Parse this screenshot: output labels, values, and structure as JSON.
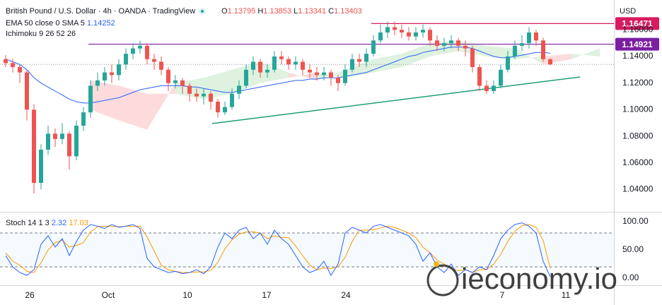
{
  "chart_data": [
    {
      "type": "candlestick",
      "title": "British Pound / U.S. Dollar · 4h · OANDA · TradingView",
      "ohlc_prefixes": [
        "O",
        "H",
        "L",
        "C"
      ],
      "currency": "USD",
      "up_color": "#26a69a",
      "down_color": "#ef5350",
      "open": [
        1.138,
        1.135,
        1.132,
        1.128,
        1.1,
        1.045,
        1.07,
        1.082,
        1.078,
        1.082,
        1.065,
        1.088,
        1.098,
        1.118,
        1.122,
        1.128,
        1.126,
        1.134,
        1.142,
        1.146,
        1.148,
        1.138,
        1.136,
        1.13,
        1.12,
        1.122,
        1.118,
        1.112,
        1.11,
        1.112,
        1.106,
        1.098,
        1.102,
        1.112,
        1.118,
        1.13,
        1.136,
        1.128,
        1.13,
        1.14,
        1.138,
        1.134,
        1.136,
        1.13,
        1.128,
        1.126,
        1.128,
        1.124,
        1.12,
        1.13,
        1.138,
        1.136,
        1.142,
        1.152,
        1.158,
        1.162,
        1.16,
        1.158,
        1.155,
        1.158,
        1.16,
        1.152,
        1.148,
        1.15,
        1.152,
        1.148,
        1.146,
        1.132,
        1.118,
        1.114,
        1.118,
        1.13,
        1.14,
        1.148,
        1.15,
        1.158,
        1.152,
        1.13795
      ],
      "high": [
        1.141,
        1.138,
        1.134,
        1.13,
        1.104,
        1.074,
        1.088,
        1.086,
        1.09,
        1.084,
        1.092,
        1.102,
        1.122,
        1.128,
        1.132,
        1.134,
        1.138,
        1.146,
        1.15,
        1.152,
        1.15,
        1.142,
        1.14,
        1.132,
        1.126,
        1.124,
        1.12,
        1.116,
        1.116,
        1.114,
        1.108,
        1.106,
        1.116,
        1.122,
        1.134,
        1.14,
        1.138,
        1.134,
        1.144,
        1.144,
        1.14,
        1.14,
        1.138,
        1.134,
        1.132,
        1.132,
        1.13,
        1.126,
        1.134,
        1.142,
        1.142,
        1.146,
        1.156,
        1.164,
        1.166,
        1.166,
        1.164,
        1.162,
        1.162,
        1.164,
        1.162,
        1.156,
        1.154,
        1.156,
        1.154,
        1.152,
        1.148,
        1.134,
        1.122,
        1.122,
        1.134,
        1.144,
        1.152,
        1.156,
        1.162,
        1.16,
        1.154,
        1.13853
      ],
      "low": [
        1.132,
        1.128,
        1.12,
        1.092,
        1.037,
        1.04,
        1.066,
        1.072,
        1.074,
        1.055,
        1.062,
        1.084,
        1.094,
        1.114,
        1.118,
        1.12,
        1.122,
        1.13,
        1.138,
        1.142,
        1.134,
        1.13,
        1.126,
        1.114,
        1.116,
        1.112,
        1.106,
        1.106,
        1.104,
        1.1,
        1.094,
        1.096,
        1.1,
        1.108,
        1.116,
        1.126,
        1.124,
        1.124,
        1.128,
        1.134,
        1.13,
        1.13,
        1.126,
        1.124,
        1.122,
        1.122,
        1.118,
        1.114,
        1.118,
        1.128,
        1.132,
        1.132,
        1.14,
        1.15,
        1.154,
        1.156,
        1.154,
        1.152,
        1.152,
        1.154,
        1.148,
        1.144,
        1.144,
        1.146,
        1.144,
        1.14,
        1.128,
        1.114,
        1.112,
        1.112,
        1.116,
        1.128,
        1.138,
        1.144,
        1.146,
        1.148,
        1.136,
        1.13341
      ],
      "close": [
        1.135,
        1.132,
        1.128,
        1.1,
        1.045,
        1.07,
        1.082,
        1.078,
        1.082,
        1.065,
        1.088,
        1.098,
        1.118,
        1.122,
        1.128,
        1.126,
        1.134,
        1.142,
        1.146,
        1.148,
        1.138,
        1.136,
        1.13,
        1.12,
        1.122,
        1.118,
        1.112,
        1.11,
        1.112,
        1.106,
        1.098,
        1.102,
        1.112,
        1.118,
        1.13,
        1.136,
        1.128,
        1.13,
        1.14,
        1.138,
        1.134,
        1.136,
        1.13,
        1.128,
        1.126,
        1.128,
        1.124,
        1.12,
        1.13,
        1.138,
        1.136,
        1.142,
        1.152,
        1.158,
        1.162,
        1.16,
        1.158,
        1.155,
        1.158,
        1.16,
        1.152,
        1.148,
        1.15,
        1.152,
        1.148,
        1.146,
        1.132,
        1.118,
        1.114,
        1.118,
        1.13,
        1.14,
        1.148,
        1.15,
        1.158,
        1.152,
        1.13795,
        1.13403
      ],
      "ema": {
        "name": "EMA 50 close 0 SMA 5",
        "color": "#2962ff",
        "values": [
          1.138,
          1.136,
          1.134,
          1.13,
          1.124,
          1.12,
          1.117,
          1.114,
          1.111,
          1.108,
          1.106,
          1.105,
          1.105,
          1.106,
          1.107,
          1.108,
          1.109,
          1.111,
          1.113,
          1.115,
          1.116,
          1.117,
          1.118,
          1.118,
          1.118,
          1.118,
          1.117,
          1.117,
          1.116,
          1.115,
          1.114,
          1.113,
          1.113,
          1.114,
          1.115,
          1.116,
          1.117,
          1.118,
          1.119,
          1.12,
          1.121,
          1.122,
          1.122,
          1.123,
          1.123,
          1.124,
          1.124,
          1.124,
          1.125,
          1.126,
          1.127,
          1.128,
          1.13,
          1.132,
          1.134,
          1.136,
          1.138,
          1.14,
          1.141,
          1.143,
          1.144,
          1.145,
          1.146,
          1.147,
          1.147,
          1.147,
          1.146,
          1.144,
          1.142,
          1.14,
          1.139,
          1.139,
          1.14,
          1.141,
          1.142,
          1.143,
          1.143,
          1.14252
        ]
      },
      "cloud": {
        "name": "Ichimoku 9 26 52 26",
        "up_color": "#4caf50",
        "down_color": "#f23645",
        "x": [
          12,
          16,
          20,
          24,
          28,
          32,
          36,
          40,
          44,
          48,
          52,
          56,
          60,
          64,
          68,
          72,
          76,
          80,
          84
        ],
        "span_a": [
          1.1,
          1.092,
          1.085,
          1.12,
          1.124,
          1.13,
          1.136,
          1.128,
          1.122,
          1.13,
          1.138,
          1.142,
          1.15,
          1.152,
          1.148,
          1.146,
          1.134,
          1.138,
          1.146
        ],
        "span_b": [
          1.122,
          1.118,
          1.112,
          1.112,
          1.108,
          1.112,
          1.12,
          1.124,
          1.128,
          1.124,
          1.128,
          1.132,
          1.14,
          1.144,
          1.14,
          1.138,
          1.14,
          1.142,
          1.14
        ]
      },
      "levels": [
        {
          "value": 1.16471,
          "color": "#d81b60",
          "from": 51.7
        },
        {
          "value": 1.14921,
          "color": "#7b1fa2",
          "from": 11.7
        }
      ],
      "trendline": {
        "color": "#1e9f78",
        "x": [
          29.2,
          81.2
        ],
        "y": [
          1.0896,
          1.1246
        ]
      },
      "xlim": [
        -0.8,
        86
      ],
      "ylim": [
        1.0233,
        1.1824
      ],
      "yticks": [
        {
          "value": 1.04,
          "label": "1.04000"
        },
        {
          "value": 1.06,
          "label": "1.06000"
        },
        {
          "value": 1.08,
          "label": "1.08000"
        },
        {
          "value": 1.1,
          "label": "1.10000"
        },
        {
          "value": 1.12,
          "label": "1.12000"
        },
        {
          "value": 1.14,
          "label": "1.14000"
        },
        {
          "value": 1.16,
          "label": "1.16000"
        }
      ]
    },
    {
      "type": "line",
      "title": "Stoch 14 1 3",
      "series": [
        {
          "name": "K",
          "color": "#2962ff",
          "values": [
            40,
            20,
            10,
            5,
            15,
            60,
            75,
            55,
            70,
            40,
            65,
            85,
            95,
            92,
            88,
            95,
            90,
            92,
            95,
            88,
            35,
            20,
            15,
            10,
            12,
            8,
            10,
            15,
            8,
            20,
            55,
            80,
            70,
            85,
            90,
            70,
            80,
            60,
            85,
            70,
            60,
            40,
            20,
            10,
            15,
            30,
            5,
            25,
            80,
            90,
            85,
            80,
            92,
            95,
            90,
            85,
            80,
            75,
            60,
            30,
            45,
            20,
            10,
            25,
            5,
            15,
            10,
            20,
            15,
            40,
            70,
            85,
            95,
            98,
            92,
            80,
            30,
            2.32
          ]
        },
        {
          "name": "D",
          "color": "#ff9800",
          "values": [
            45,
            30,
            23,
            12,
            10,
            27,
            50,
            63,
            67,
            55,
            58,
            63,
            82,
            91,
            92,
            92,
            91,
            92,
            92,
            92,
            73,
            48,
            23,
            15,
            12,
            10,
            10,
            11,
            11,
            14,
            28,
            52,
            68,
            78,
            82,
            82,
            80,
            70,
            75,
            72,
            72,
            57,
            40,
            23,
            15,
            18,
            17,
            20,
            37,
            65,
            85,
            85,
            86,
            89,
            92,
            90,
            85,
            80,
            72,
            55,
            45,
            32,
            25,
            18,
            13,
            15,
            10,
            15,
            15,
            25,
            42,
            65,
            83,
            93,
            95,
            90,
            67,
            17.03
          ]
        }
      ],
      "bands": [
        80,
        20
      ],
      "xlim": [
        -0.8,
        86
      ],
      "ylim": [
        -12.5,
        115
      ],
      "yticks": [
        {
          "value": 0,
          "label": "0.00"
        },
        {
          "value": 50,
          "label": "50.00"
        },
        {
          "value": 100,
          "label": "100.00"
        }
      ],
      "xticks": [
        {
          "value": 3.4,
          "label": "26"
        },
        {
          "value": 14.5,
          "label": "Oct"
        },
        {
          "value": 25.7,
          "label": "10"
        },
        {
          "value": 36.9,
          "label": "17"
        },
        {
          "value": 48.1,
          "label": "24"
        },
        {
          "value": 70.2,
          "label": "7"
        },
        {
          "value": 79.2,
          "label": "11"
        }
      ]
    }
  ],
  "watermark": "ieconomy.io"
}
